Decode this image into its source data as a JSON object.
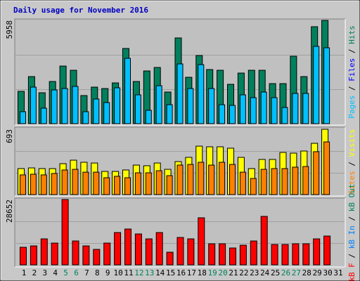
{
  "title": "Daily usage for November 2016",
  "chart_data": [
    {
      "type": "bar",
      "ylim": [
        0,
        5958
      ],
      "yticks": [
        5958
      ],
      "series": [
        {
          "name": "Hits",
          "color": "#00805c",
          "values": [
            1864,
            2715,
            1783,
            2432,
            3323,
            3080,
            1621,
            2108,
            2026,
            2351,
            4337,
            2432,
            3040,
            3242,
            1824,
            4945,
            2675,
            3931,
            3121,
            3080,
            2270,
            2918,
            3080,
            3080,
            2310,
            2310,
            3891,
            2715,
            5593,
            5958,
            0
          ]
        },
        {
          "name": "Files",
          "color": "#0000ff",
          "values": [
            null,
            null,
            null,
            null,
            null,
            null,
            null,
            null,
            null,
            null,
            null,
            null,
            null,
            null,
            null,
            null,
            null,
            null,
            null,
            null,
            null,
            null,
            null,
            null,
            null,
            null,
            null,
            null,
            null,
            null,
            null
          ]
        },
        {
          "name": "Pages",
          "color": "#00c0ff",
          "values": [
            689,
            2108,
            892,
            1945,
            2026,
            2148,
            689,
            1419,
            1216,
            2067,
            3769,
            1662,
            770,
            2189,
            1094,
            3445,
            2026,
            3405,
            2026,
            1094,
            1054,
            1662,
            1500,
            1824,
            1500,
            932,
            1743,
            1743,
            4458,
            4377,
            0
          ]
        }
      ]
    },
    {
      "type": "bar",
      "ylim": [
        0,
        693
      ],
      "yticks": [
        693
      ],
      "series": [
        {
          "name": "Visits",
          "color": "#ffff00",
          "values": [
            276,
            283,
            276,
            276,
            328,
            365,
            343,
            335,
            246,
            246,
            261,
            313,
            306,
            335,
            268,
            350,
            395,
            514,
            507,
            507,
            492,
            395,
            276,
            373,
            373,
            447,
            440,
            462,
            544,
            693,
            0
          ]
        },
        {
          "name": "Sites",
          "color": "#ff8000",
          "values": [
            209,
            216,
            209,
            224,
            261,
            268,
            238,
            238,
            179,
            194,
            179,
            231,
            231,
            253,
            201,
            313,
            320,
            343,
            313,
            343,
            320,
            238,
            171,
            268,
            276,
            276,
            291,
            298,
            455,
            559,
            0
          ]
        }
      ]
    },
    {
      "type": "bar",
      "ylim": [
        0,
        28652
      ],
      "yticks": [
        28652
      ],
      "series": [
        {
          "name": "kB Out",
          "color": "#00805c",
          "values": [
            null,
            null,
            null,
            null,
            null,
            null,
            null,
            null,
            null,
            null,
            null,
            null,
            null,
            null,
            null,
            null,
            null,
            null,
            null,
            null,
            null,
            null,
            null,
            null,
            null,
            null,
            null,
            null,
            null,
            null,
            null
          ]
        },
        {
          "name": "kB In",
          "color": "#0080ff",
          "values": [
            null,
            null,
            null,
            null,
            null,
            null,
            null,
            null,
            null,
            null,
            null,
            null,
            null,
            null,
            null,
            null,
            null,
            null,
            null,
            null,
            null,
            null,
            null,
            null,
            null,
            null,
            null,
            null,
            null,
            null,
            null
          ]
        },
        {
          "name": "kB F",
          "color": "#ff0000",
          "values": [
            7702,
            8316,
            11396,
            9548,
            28652,
            10472,
            8316,
            6776,
            9548,
            14168,
            15708,
            13552,
            11396,
            14168,
            5544,
            12012,
            11396,
            20636,
            9240,
            9240,
            7392,
            8624,
            10472,
            21252,
            8932,
            8932,
            9240,
            9240,
            11396,
            12628,
            0
          ]
        }
      ],
      "categories": [
        "1",
        "2",
        "3",
        "4",
        "5",
        "6",
        "7",
        "8",
        "9",
        "10",
        "11",
        "12",
        "13",
        "14",
        "15",
        "16",
        "17",
        "18",
        "19",
        "20",
        "21",
        "22",
        "23",
        "24",
        "25",
        "26",
        "27",
        "28",
        "29",
        "30",
        "31"
      ],
      "category_colors": [
        "#000000",
        "#000000",
        "#000000",
        "#000000",
        "#00805c",
        "#00805c",
        "#000000",
        "#000000",
        "#000000",
        "#000000",
        "#000000",
        "#00805c",
        "#00805c",
        "#000000",
        "#000000",
        "#000000",
        "#000000",
        "#000000",
        "#00805c",
        "#00805c",
        "#000000",
        "#000000",
        "#000000",
        "#000000",
        "#000000",
        "#00805c",
        "#00805c",
        "#000000",
        "#000000",
        "#000000",
        "#000000"
      ]
    }
  ]
}
